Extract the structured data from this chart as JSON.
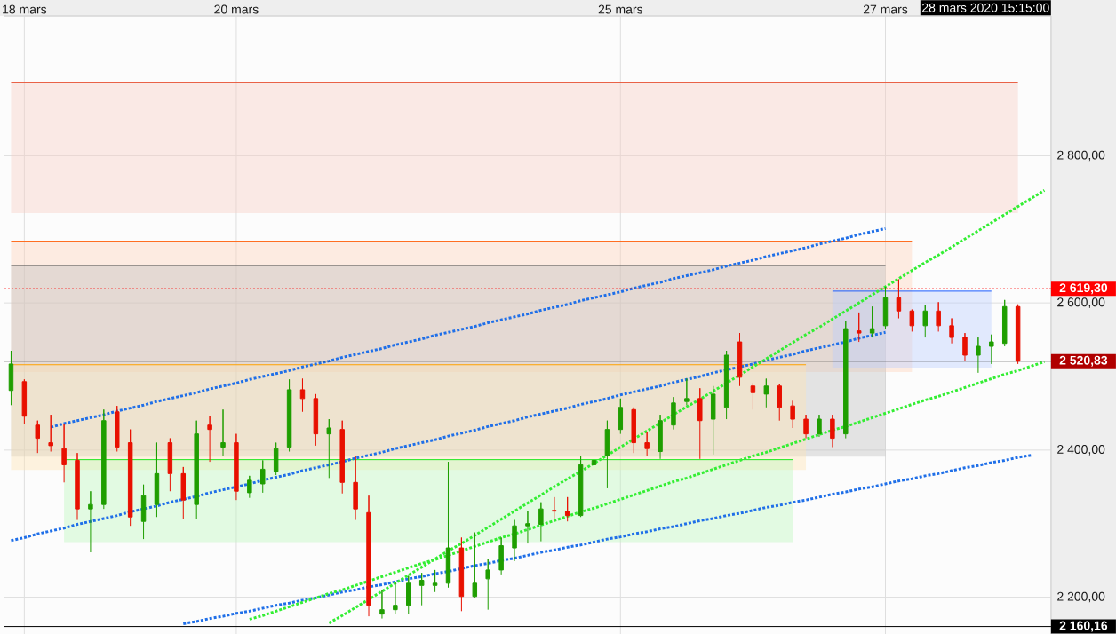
{
  "chart_data": {
    "type": "candlestick",
    "categories": [
      null,
      "18 mars",
      null,
      null,
      null,
      null,
      null,
      null,
      null,
      null,
      null,
      null,
      null,
      null,
      null,
      null,
      null,
      "20 mars",
      null,
      null,
      null,
      null,
      null,
      null,
      null,
      null,
      null,
      null,
      null,
      null,
      null,
      null,
      null,
      null,
      null,
      null,
      null,
      null,
      null,
      null,
      null,
      null,
      null,
      null,
      null,
      null,
      "25 mars",
      null,
      null,
      null,
      null,
      null,
      null,
      null,
      null,
      null,
      null,
      null,
      null,
      null,
      null,
      null,
      null,
      null,
      null,
      null,
      "27 mars",
      null,
      null,
      null,
      null,
      null,
      null,
      null,
      null,
      null,
      null,
      null,
      null
    ],
    "ohlc": [
      [
        2481,
        2535,
        2461,
        2517
      ],
      [
        2493,
        2496,
        2436,
        2446
      ],
      [
        2434,
        2440,
        2396,
        2416
      ],
      [
        2410,
        2448,
        2398,
        2406
      ],
      [
        2402,
        2436,
        2356,
        2380
      ],
      [
        2386,
        2396,
        2305,
        2320
      ],
      [
        2320,
        2344,
        2261,
        2326
      ],
      [
        2326,
        2455,
        2320,
        2440
      ],
      [
        2452,
        2460,
        2398,
        2404
      ],
      [
        2410,
        2428,
        2297,
        2309
      ],
      [
        2303,
        2353,
        2279,
        2338
      ],
      [
        2326,
        2410,
        2309,
        2368
      ],
      [
        2410,
        2416,
        2344,
        2368
      ],
      [
        2368,
        2377,
        2306,
        2332
      ],
      [
        2326,
        2440,
        2306,
        2422
      ],
      [
        2434,
        2446,
        2384,
        2428
      ],
      [
        2404,
        2455,
        2392,
        2410
      ],
      [
        2410,
        2422,
        2332,
        2344
      ],
      [
        2342,
        2365,
        2335,
        2359
      ],
      [
        2354,
        2386,
        2342,
        2374
      ],
      [
        2371,
        2410,
        2366,
        2402
      ],
      [
        2404,
        2496,
        2398,
        2482
      ],
      [
        2482,
        2497,
        2452,
        2470
      ],
      [
        2470,
        2476,
        2406,
        2422
      ],
      [
        2422,
        2442,
        2362,
        2430
      ],
      [
        2428,
        2440,
        2341,
        2356
      ],
      [
        2356,
        2392,
        2305,
        2320
      ],
      [
        2315,
        2338,
        2174,
        2189
      ],
      [
        2177,
        2210,
        2171,
        2183
      ],
      [
        2183,
        2221,
        2177,
        2189
      ],
      [
        2189,
        2229,
        2177,
        2219
      ],
      [
        2216,
        2233,
        2189,
        2223
      ],
      [
        2216,
        2237,
        2207,
        2219
      ],
      [
        2219,
        2384,
        2213,
        2267
      ],
      [
        2267,
        2281,
        2181,
        2201
      ],
      [
        2201,
        2288,
        2199,
        2219
      ],
      [
        2225,
        2252,
        2183,
        2237
      ],
      [
        2237,
        2281,
        2231,
        2270
      ],
      [
        2267,
        2305,
        2249,
        2297
      ],
      [
        2297,
        2317,
        2273,
        2300
      ],
      [
        2299,
        2329,
        2276,
        2320
      ],
      [
        2318,
        2336,
        2306,
        2317
      ],
      [
        2317,
        2336,
        2303,
        2311
      ],
      [
        2311,
        2392,
        2309,
        2380
      ],
      [
        2380,
        2428,
        2368,
        2386
      ],
      [
        2392,
        2440,
        2348,
        2428
      ],
      [
        2428,
        2470,
        2422,
        2458
      ],
      [
        2455,
        2458,
        2396,
        2410
      ],
      [
        2410,
        2424,
        2392,
        2402
      ],
      [
        2398,
        2448,
        2388,
        2440
      ],
      [
        2434,
        2472,
        2428,
        2464
      ],
      [
        2466,
        2497,
        2461,
        2470
      ],
      [
        2470,
        2484,
        2388,
        2440
      ],
      [
        2442,
        2487,
        2394,
        2476
      ],
      [
        2458,
        2535,
        2442,
        2529
      ],
      [
        2547,
        2559,
        2487,
        2499
      ],
      [
        2487,
        2491,
        2455,
        2478
      ],
      [
        2476,
        2497,
        2458,
        2487
      ],
      [
        2487,
        2490,
        2440,
        2458
      ],
      [
        2460,
        2467,
        2430,
        2442
      ],
      [
        2442,
        2448,
        2416,
        2422
      ],
      [
        2422,
        2448,
        2418,
        2442
      ],
      [
        2442,
        2448,
        2404,
        2416
      ],
      [
        2422,
        2575,
        2416,
        2565
      ],
      [
        2562,
        2587,
        2547,
        2559
      ],
      [
        2559,
        2595,
        2553,
        2565
      ],
      [
        2569,
        2622,
        2565,
        2607
      ],
      [
        2607,
        2632,
        2579,
        2589
      ],
      [
        2589,
        2591,
        2561,
        2569
      ],
      [
        2569,
        2597,
        2553,
        2589
      ],
      [
        2589,
        2601,
        2561,
        2569
      ],
      [
        2569,
        2579,
        2545,
        2553
      ],
      [
        2553,
        2559,
        2521,
        2529
      ],
      [
        2529,
        2553,
        2505,
        2541
      ],
      [
        2541,
        2557,
        2517,
        2547
      ],
      [
        2545,
        2604,
        2541,
        2595
      ],
      [
        2595,
        2598,
        2517,
        2520.83
      ],
      null,
      null
    ],
    "colors": [
      "#1f9e00",
      "#e81000",
      "#e81000",
      "#e81000",
      "#e81000",
      "#e81000",
      "#1f9e00",
      "#1f9e00",
      "#e81000",
      "#e81000",
      "#1f9e00",
      "#1f9e00",
      "#e81000",
      "#e81000",
      "#1f9e00",
      "#e81000",
      "#1f9e00",
      "#e81000",
      "#1f9e00",
      "#1f9e00",
      "#1f9e00",
      "#1f9e00",
      "#e81000",
      "#e81000",
      "#1f9e00",
      "#e81000",
      "#e81000",
      "#e81000",
      "#1f9e00",
      "#1f9e00",
      "#1f9e00",
      "#1f9e00",
      "#1f9e00",
      "#1f9e00",
      "#e81000",
      "#1f9e00",
      "#1f9e00",
      "#1f9e00",
      "#1f9e00",
      "#1f9e00",
      "#1f9e00",
      "#e81000",
      "#e81000",
      "#1f9e00",
      "#1f9e00",
      "#1f9e00",
      "#1f9e00",
      "#e81000",
      "#e81000",
      "#1f9e00",
      "#1f9e00",
      "#1f9e00",
      "#e81000",
      "#1f9e00",
      "#1f9e00",
      "#e81000",
      "#e81000",
      "#1f9e00",
      "#e81000",
      "#e81000",
      "#e81000",
      "#1f9e00",
      "#e81000",
      "#1f9e00",
      "#e81000",
      "#1f9e00",
      "#1f9e00",
      "#e81000",
      "#e81000",
      "#1f9e00",
      "#e81000",
      "#e81000",
      "#e81000",
      "#1f9e00",
      "#1f9e00",
      "#1f9e00",
      "#e81000",
      null,
      null
    ],
    "ylim": [
      2150,
      2990
    ],
    "yticks": [
      {
        "value": 2200,
        "label": "2 200,00"
      },
      {
        "value": 2400,
        "label": "2 400,00"
      },
      {
        "value": 2600,
        "label": "2 600,00"
      },
      {
        "value": 2800,
        "label": "2 800,00"
      }
    ],
    "grid": true,
    "series": [
      {
        "type": "line",
        "color": "#e8583c",
        "line_style": "solid",
        "values": [
          2900,
          2900,
          2900,
          2900,
          2900,
          2900,
          2900,
          2900,
          2900,
          2900,
          2900,
          2900,
          2900,
          2900,
          2900,
          2900,
          2900,
          2900,
          2900,
          2900,
          2900,
          2900,
          2900,
          2900,
          2900,
          2900,
          2900,
          2900,
          2900,
          2900,
          2900,
          2900,
          2900,
          2900,
          2900,
          2900,
          2900,
          2900,
          2900,
          2900,
          2900,
          2900,
          2900,
          2900,
          2900,
          2900,
          2900,
          2900,
          2900,
          2900,
          2900,
          2900,
          2900,
          2900,
          2900,
          2900,
          2900,
          2900,
          2900,
          2900,
          2900,
          2900,
          2900,
          2900,
          2900,
          2900,
          2900,
          2900,
          2900,
          2900,
          2900,
          2900,
          2900,
          2900,
          2900,
          2900,
          2900,
          null,
          null
        ],
        "upper": [
          2900,
          2900,
          2900,
          2900,
          2900,
          2900,
          2900,
          2900,
          2900,
          2900,
          2900,
          2900,
          2900,
          2900,
          2900,
          2900,
          2900,
          2900,
          2900,
          2900,
          2900,
          2900,
          2900,
          2900,
          2900,
          2900,
          2900,
          2900,
          2900,
          2900,
          2900,
          2900,
          2900,
          2900,
          2900,
          2900,
          2900,
          2900,
          2900,
          2900,
          2900,
          2900,
          2900,
          2900,
          2900,
          2900,
          2900,
          2900,
          2900,
          2900,
          2900,
          2900,
          2900,
          2900,
          2900,
          2900,
          2900,
          2900,
          2900,
          2900,
          2900,
          2900,
          2900,
          2900,
          2900,
          2900,
          2900,
          2900,
          2900,
          2900,
          2900,
          2900,
          2900,
          2900,
          2900,
          2900,
          2900,
          null,
          null
        ],
        "lower": [
          2722,
          2722,
          2722,
          2722,
          2722,
          2722,
          2722,
          2722,
          2722,
          2722,
          2722,
          2722,
          2722,
          2722,
          2722,
          2722,
          2722,
          2722,
          2722,
          2722,
          2722,
          2722,
          2722,
          2722,
          2722,
          2722,
          2722,
          2722,
          2722,
          2722,
          2722,
          2722,
          2722,
          2722,
          2722,
          2722,
          2722,
          2722,
          2722,
          2722,
          2722,
          2722,
          2722,
          2722,
          2722,
          2722,
          2722,
          2722,
          2722,
          2722,
          2722,
          2722,
          2722,
          2722,
          2722,
          2722,
          2722,
          2722,
          2722,
          2722,
          2722,
          2722,
          2722,
          2722,
          2722,
          2722,
          2722,
          2722,
          2722,
          2722,
          2722,
          2722,
          2722,
          2722,
          2722,
          2722,
          2722,
          null,
          null
        ]
      },
      {
        "type": "line",
        "color": "#ff6a1a",
        "line_style": "solid",
        "values": [
          2684,
          2684,
          2684,
          2684,
          2684,
          2684,
          2684,
          2684,
          2684,
          2684,
          2684,
          2684,
          2684,
          2684,
          2684,
          2684,
          2684,
          2684,
          2684,
          2684,
          2684,
          2684,
          2684,
          2684,
          2684,
          2684,
          2684,
          2684,
          2684,
          2684,
          2684,
          2684,
          2684,
          2684,
          2684,
          2684,
          2684,
          2684,
          2684,
          2684,
          2684,
          2684,
          2684,
          2684,
          2684,
          2684,
          2684,
          2684,
          2684,
          2684,
          2684,
          2684,
          2684,
          2684,
          2684,
          2684,
          2684,
          2684,
          2684,
          2684,
          2684,
          2684,
          2684,
          2684,
          2684,
          2684,
          2684,
          2684,
          2684,
          null,
          null,
          null,
          null,
          null,
          null,
          null,
          null,
          null,
          null
        ],
        "upper": [
          2684,
          2684,
          2684,
          2684,
          2684,
          2684,
          2684,
          2684,
          2684,
          2684,
          2684,
          2684,
          2684,
          2684,
          2684,
          2684,
          2684,
          2684,
          2684,
          2684,
          2684,
          2684,
          2684,
          2684,
          2684,
          2684,
          2684,
          2684,
          2684,
          2684,
          2684,
          2684,
          2684,
          2684,
          2684,
          2684,
          2684,
          2684,
          2684,
          2684,
          2684,
          2684,
          2684,
          2684,
          2684,
          2684,
          2684,
          2684,
          2684,
          2684,
          2684,
          2684,
          2684,
          2684,
          2684,
          2684,
          2684,
          2684,
          2684,
          2684,
          2684,
          2684,
          2684,
          2684,
          2684,
          2684,
          2684,
          2684,
          2684,
          null,
          null,
          null,
          null,
          null,
          null,
          null,
          null,
          null,
          null
        ],
        "lower": [
          2506,
          2506,
          2506,
          2506,
          2506,
          2506,
          2506,
          2506,
          2506,
          2506,
          2506,
          2506,
          2506,
          2506,
          2506,
          2506,
          2506,
          2506,
          2506,
          2506,
          2506,
          2506,
          2506,
          2506,
          2506,
          2506,
          2506,
          2506,
          2506,
          2506,
          2506,
          2506,
          2506,
          2506,
          2506,
          2506,
          2506,
          2506,
          2506,
          2506,
          2506,
          2506,
          2506,
          2506,
          2506,
          2506,
          2506,
          2506,
          2506,
          2506,
          2506,
          2506,
          2506,
          2506,
          2506,
          2506,
          2506,
          2506,
          2506,
          2506,
          2506,
          2506,
          2506,
          2506,
          2506,
          2506,
          2506,
          2506,
          2506,
          null,
          null,
          null,
          null,
          null,
          null,
          null,
          null,
          null,
          null
        ]
      },
      {
        "type": "line",
        "color": "#222222",
        "line_style": "solid",
        "values": [
          2651,
          2651,
          2651,
          2651,
          2651,
          2651,
          2651,
          2651,
          2651,
          2651,
          2651,
          2651,
          2651,
          2651,
          2651,
          2651,
          2651,
          2651,
          2651,
          2651,
          2651,
          2651,
          2651,
          2651,
          2651,
          2651,
          2651,
          2651,
          2651,
          2651,
          2651,
          2651,
          2651,
          2651,
          2651,
          2651,
          2651,
          2651,
          2651,
          2651,
          2651,
          2651,
          2651,
          2651,
          2651,
          2651,
          2651,
          2651,
          2651,
          2651,
          2651,
          2651,
          2651,
          2651,
          2651,
          2651,
          2651,
          2651,
          2651,
          2651,
          2651,
          2651,
          2651,
          2651,
          2651,
          2651,
          2651,
          null,
          null,
          null,
          null,
          null,
          null,
          null,
          null,
          null,
          null,
          null,
          null
        ],
        "upper": [
          2651,
          2651,
          2651,
          2651,
          2651,
          2651,
          2651,
          2651,
          2651,
          2651,
          2651,
          2651,
          2651,
          2651,
          2651,
          2651,
          2651,
          2651,
          2651,
          2651,
          2651,
          2651,
          2651,
          2651,
          2651,
          2651,
          2651,
          2651,
          2651,
          2651,
          2651,
          2651,
          2651,
          2651,
          2651,
          2651,
          2651,
          2651,
          2651,
          2651,
          2651,
          2651,
          2651,
          2651,
          2651,
          2651,
          2651,
          2651,
          2651,
          2651,
          2651,
          2651,
          2651,
          2651,
          2651,
          2651,
          2651,
          2651,
          2651,
          2651,
          2651,
          2651,
          2651,
          2651,
          2651,
          2651,
          2651,
          null,
          null,
          null,
          null,
          null,
          null,
          null,
          null,
          null,
          null,
          null,
          null
        ],
        "lower": [
          2391,
          2391,
          2391,
          2391,
          2391,
          2391,
          2391,
          2391,
          2391,
          2391,
          2391,
          2391,
          2391,
          2391,
          2391,
          2391,
          2391,
          2391,
          2391,
          2391,
          2391,
          2391,
          2391,
          2391,
          2391,
          2391,
          2391,
          2391,
          2391,
          2391,
          2391,
          2391,
          2391,
          2391,
          2391,
          2391,
          2391,
          2391,
          2391,
          2391,
          2391,
          2391,
          2391,
          2391,
          2391,
          2391,
          2391,
          2391,
          2391,
          2391,
          2391,
          2391,
          2391,
          2391,
          2391,
          2391,
          2391,
          2391,
          2391,
          2391,
          2391,
          2391,
          2391,
          2391,
          2391,
          2391,
          2391,
          null,
          null,
          null,
          null,
          null,
          null,
          null,
          null,
          null,
          null,
          null,
          null
        ]
      },
      {
        "type": "line",
        "color": "#ffa200",
        "line_style": "solid",
        "values": [
          2516,
          2516,
          2516,
          2516,
          2516,
          2516,
          2516,
          2516,
          2516,
          2516,
          2516,
          2516,
          2516,
          2516,
          2516,
          2516,
          2516,
          2516,
          2516,
          2516,
          2516,
          2516,
          2516,
          2516,
          2516,
          2516,
          2516,
          2516,
          2516,
          2516,
          2516,
          2516,
          2516,
          2516,
          2516,
          2516,
          2516,
          2516,
          2516,
          2516,
          2516,
          2516,
          2516,
          2516,
          2516,
          2516,
          2516,
          2516,
          2516,
          2516,
          2516,
          2516,
          2516,
          2516,
          2516,
          2516,
          2516,
          2516,
          2516,
          2516,
          2516,
          null,
          null,
          null,
          null,
          null,
          null,
          null,
          null,
          null,
          null,
          null,
          null,
          null,
          null,
          null,
          null,
          null,
          null
        ],
        "upper": [
          2516,
          2516,
          2516,
          2516,
          2516,
          2516,
          2516,
          2516,
          2516,
          2516,
          2516,
          2516,
          2516,
          2516,
          2516,
          2516,
          2516,
          2516,
          2516,
          2516,
          2516,
          2516,
          2516,
          2516,
          2516,
          2516,
          2516,
          2516,
          2516,
          2516,
          2516,
          2516,
          2516,
          2516,
          2516,
          2516,
          2516,
          2516,
          2516,
          2516,
          2516,
          2516,
          2516,
          2516,
          2516,
          2516,
          2516,
          2516,
          2516,
          2516,
          2516,
          2516,
          2516,
          2516,
          2516,
          2516,
          2516,
          2516,
          2516,
          2516,
          2516,
          null,
          null,
          null,
          null,
          null,
          null,
          null,
          null,
          null,
          null,
          null,
          null,
          null,
          null,
          null,
          null,
          null,
          null
        ],
        "lower": [
          2373,
          2373,
          2373,
          2373,
          2373,
          2373,
          2373,
          2373,
          2373,
          2373,
          2373,
          2373,
          2373,
          2373,
          2373,
          2373,
          2373,
          2373,
          2373,
          2373,
          2373,
          2373,
          2373,
          2373,
          2373,
          2373,
          2373,
          2373,
          2373,
          2373,
          2373,
          2373,
          2373,
          2373,
          2373,
          2373,
          2373,
          2373,
          2373,
          2373,
          2373,
          2373,
          2373,
          2373,
          2373,
          2373,
          2373,
          2373,
          2373,
          2373,
          2373,
          2373,
          2373,
          2373,
          2373,
          2373,
          2373,
          2373,
          2373,
          2373,
          2373,
          null,
          null,
          null,
          null,
          null,
          null,
          null,
          null,
          null,
          null,
          null,
          null,
          null,
          null,
          null,
          null,
          null,
          null
        ]
      },
      {
        "type": "line",
        "color": "#1ee61e",
        "line_style": "solid",
        "values": [
          null,
          null,
          null,
          null,
          2387,
          2387,
          2387,
          2387,
          2387,
          2387,
          2387,
          2387,
          2387,
          2387,
          2387,
          2387,
          2387,
          2387,
          2387,
          2387,
          2387,
          2387,
          2387,
          2387,
          2387,
          2387,
          2387,
          2387,
          2387,
          2387,
          2387,
          2387,
          2387,
          2387,
          2387,
          2387,
          2387,
          2387,
          2387,
          2387,
          2387,
          2387,
          2387,
          2387,
          2387,
          2387,
          2387,
          2387,
          2387,
          2387,
          2387,
          2387,
          2387,
          2387,
          2387,
          2387,
          2387,
          2387,
          2387,
          2387,
          null,
          null,
          null,
          null,
          null,
          null,
          null,
          null,
          null,
          null,
          null,
          null,
          null,
          null,
          null,
          null,
          null,
          null,
          null
        ],
        "upper": [
          null,
          null,
          null,
          null,
          2387,
          2387,
          2387,
          2387,
          2387,
          2387,
          2387,
          2387,
          2387,
          2387,
          2387,
          2387,
          2387,
          2387,
          2387,
          2387,
          2387,
          2387,
          2387,
          2387,
          2387,
          2387,
          2387,
          2387,
          2387,
          2387,
          2387,
          2387,
          2387,
          2387,
          2387,
          2387,
          2387,
          2387,
          2387,
          2387,
          2387,
          2387,
          2387,
          2387,
          2387,
          2387,
          2387,
          2387,
          2387,
          2387,
          2387,
          2387,
          2387,
          2387,
          2387,
          2387,
          2387,
          2387,
          2387,
          2387,
          null,
          null,
          null,
          null,
          null,
          null,
          null,
          null,
          null,
          null,
          null,
          null,
          null,
          null,
          null,
          null,
          null,
          null,
          null
        ],
        "lower": [
          null,
          null,
          null,
          null,
          2275,
          2275,
          2275,
          2275,
          2275,
          2275,
          2275,
          2275,
          2275,
          2275,
          2275,
          2275,
          2275,
          2275,
          2275,
          2275,
          2275,
          2275,
          2275,
          2275,
          2275,
          2275,
          2275,
          2275,
          2275,
          2275,
          2275,
          2275,
          2275,
          2275,
          2275,
          2275,
          2275,
          2275,
          2275,
          2275,
          2275,
          2275,
          2275,
          2275,
          2275,
          2275,
          2275,
          2275,
          2275,
          2275,
          2275,
          2275,
          2275,
          2275,
          2275,
          2275,
          2275,
          2275,
          2275,
          2275,
          null,
          null,
          null,
          null,
          null,
          null,
          null,
          null,
          null,
          null,
          null,
          null,
          null,
          null,
          null,
          null,
          null,
          null,
          null
        ]
      },
      {
        "type": "line",
        "color": "#1a5cff",
        "line_style": "solid",
        "values": [
          null,
          null,
          null,
          null,
          null,
          null,
          null,
          null,
          null,
          null,
          null,
          null,
          null,
          null,
          null,
          null,
          null,
          null,
          null,
          null,
          null,
          null,
          null,
          null,
          null,
          null,
          null,
          null,
          null,
          null,
          null,
          null,
          null,
          null,
          null,
          null,
          null,
          null,
          null,
          null,
          null,
          null,
          null,
          null,
          null,
          null,
          null,
          null,
          null,
          null,
          null,
          null,
          null,
          null,
          null,
          null,
          null,
          null,
          null,
          null,
          null,
          null,
          2616,
          2616,
          2616,
          2616,
          2616,
          2616,
          2616,
          2616,
          2616,
          2616,
          2616,
          2616,
          2616,
          null,
          null,
          null,
          null
        ],
        "upper": [
          null,
          null,
          null,
          null,
          null,
          null,
          null,
          null,
          null,
          null,
          null,
          null,
          null,
          null,
          null,
          null,
          null,
          null,
          null,
          null,
          null,
          null,
          null,
          null,
          null,
          null,
          null,
          null,
          null,
          null,
          null,
          null,
          null,
          null,
          null,
          null,
          null,
          null,
          null,
          null,
          null,
          null,
          null,
          null,
          null,
          null,
          null,
          null,
          null,
          null,
          null,
          null,
          null,
          null,
          null,
          null,
          null,
          null,
          null,
          null,
          null,
          null,
          2616,
          2616,
          2616,
          2616,
          2616,
          2616,
          2616,
          2616,
          2616,
          2616,
          2616,
          2616,
          2616,
          null,
          null,
          null,
          null
        ],
        "lower": [
          null,
          null,
          null,
          null,
          null,
          null,
          null,
          null,
          null,
          null,
          null,
          null,
          null,
          null,
          null,
          null,
          null,
          null,
          null,
          null,
          null,
          null,
          null,
          null,
          null,
          null,
          null,
          null,
          null,
          null,
          null,
          null,
          null,
          null,
          null,
          null,
          null,
          null,
          null,
          null,
          null,
          null,
          null,
          null,
          null,
          null,
          null,
          null,
          null,
          null,
          null,
          null,
          null,
          null,
          null,
          null,
          null,
          null,
          null,
          null,
          null,
          null,
          2512,
          2512,
          2512,
          2512,
          2512,
          2512,
          2512,
          2512,
          2512,
          2512,
          2512,
          2512,
          2512,
          null,
          null,
          null,
          null
        ]
      },
      {
        "type": "line",
        "color": "#1f6fe8",
        "line_style": "dotted",
        "values": [
          null,
          null,
          null,
          2431,
          2436,
          2440,
          2444,
          2448,
          2453,
          2457,
          2461,
          2466,
          2470,
          2474,
          2478,
          2483,
          2487,
          2491,
          2496,
          2500,
          2504,
          2508,
          2513,
          2517,
          2521,
          2526,
          2530,
          2534,
          2538,
          2543,
          2547,
          2551,
          2556,
          2560,
          2564,
          2568,
          2573,
          2577,
          2581,
          2585,
          2590,
          2594,
          2598,
          2603,
          2607,
          2611,
          2615,
          2620,
          2624,
          2628,
          2633,
          2637,
          2641,
          2645,
          2650,
          2654,
          2658,
          2663,
          2667,
          2671,
          2675,
          2680,
          2684,
          2688,
          2693,
          2697,
          2701,
          null,
          null,
          null,
          null,
          null,
          null,
          null,
          null,
          null,
          null,
          null,
          null
        ]
      },
      {
        "type": "line",
        "color": "#1f6fe8",
        "line_style": "dotted",
        "values": [
          2277,
          2281,
          2286,
          2290,
          2294,
          2299,
          2303,
          2307,
          2311,
          2316,
          2320,
          2324,
          2329,
          2333,
          2337,
          2342,
          2346,
          2350,
          2354,
          2359,
          2363,
          2367,
          2372,
          2376,
          2380,
          2384,
          2389,
          2393,
          2397,
          2402,
          2406,
          2410,
          2414,
          2419,
          2423,
          2427,
          2432,
          2436,
          2440,
          2445,
          2449,
          2453,
          2457,
          2462,
          2466,
          2470,
          2475,
          2479,
          2483,
          2487,
          2492,
          2496,
          2500,
          2505,
          2509,
          2513,
          2517,
          2522,
          2526,
          2530,
          2535,
          2539,
          2543,
          2547,
          2552,
          2556,
          2560,
          null,
          null,
          null,
          null,
          null,
          null,
          null,
          null,
          null,
          null,
          null,
          null
        ]
      },
      {
        "type": "line",
        "color": "#1f6fe8",
        "line_style": "dotted",
        "values": [
          null,
          null,
          null,
          null,
          null,
          null,
          null,
          null,
          null,
          null,
          null,
          null,
          null,
          2164,
          2167,
          2171,
          2174,
          2178,
          2181,
          2185,
          2189,
          2192,
          2196,
          2199,
          2203,
          2207,
          2210,
          2214,
          2217,
          2221,
          2225,
          2228,
          2232,
          2235,
          2239,
          2243,
          2246,
          2250,
          2253,
          2257,
          2261,
          2264,
          2268,
          2271,
          2275,
          2279,
          2282,
          2286,
          2289,
          2293,
          2296,
          2300,
          2304,
          2307,
          2311,
          2314,
          2318,
          2322,
          2325,
          2329,
          2332,
          2336,
          2340,
          2343,
          2347,
          2350,
          2354,
          2358,
          2361,
          2365,
          2368,
          2372,
          2376,
          2379,
          2383,
          2386,
          2390,
          2393,
          null
        ]
      },
      {
        "type": "line",
        "color": "#33ee33",
        "line_style": "dotted",
        "values": [
          null,
          null,
          null,
          null,
          null,
          null,
          null,
          null,
          null,
          null,
          null,
          null,
          null,
          null,
          null,
          null,
          null,
          null,
          null,
          null,
          null,
          null,
          null,
          null,
          2165,
          2175,
          2186,
          2197,
          2208,
          2219,
          2230,
          2241,
          2252,
          2263,
          2273,
          2284,
          2295,
          2306,
          2317,
          2328,
          2339,
          2350,
          2361,
          2371,
          2382,
          2393,
          2404,
          2415,
          2426,
          2437,
          2448,
          2459,
          2469,
          2480,
          2491,
          2502,
          2513,
          2524,
          2535,
          2546,
          2557,
          2567,
          2578,
          2589,
          2600,
          2611,
          2622,
          2633,
          2644,
          2655,
          2665,
          2676,
          2687,
          2698,
          2709,
          2720,
          2731,
          2742,
          2753
        ]
      },
      {
        "type": "line",
        "color": "#33ee33",
        "line_style": "dotted",
        "values": [
          null,
          null,
          null,
          null,
          null,
          null,
          null,
          null,
          null,
          null,
          null,
          null,
          null,
          null,
          null,
          null,
          null,
          null,
          2170,
          2175,
          2181,
          2187,
          2193,
          2199,
          2205,
          2210,
          2216,
          2222,
          2228,
          2234,
          2240,
          2246,
          2251,
          2257,
          2263,
          2269,
          2275,
          2281,
          2286,
          2292,
          2298,
          2304,
          2310,
          2316,
          2321,
          2327,
          2333,
          2339,
          2345,
          2351,
          2357,
          2362,
          2368,
          2374,
          2380,
          2386,
          2392,
          2397,
          2403,
          2409,
          2415,
          2421,
          2427,
          2432,
          2438,
          2444,
          2450,
          2456,
          2462,
          2468,
          2473,
          2479,
          2485,
          2491,
          2497,
          2503,
          2508,
          2514,
          2520
        ]
      }
    ],
    "ref_lines": [
      {
        "axis": "y",
        "value": 2619.3,
        "label": "2 619,30",
        "color": "#ff0000",
        "line_style": "dotted"
      },
      {
        "axis": "y",
        "value": 2520.83,
        "label": "2 520,83",
        "color": "#333333",
        "line_style": "solid"
      },
      {
        "axis": "y",
        "value": 2160.16,
        "label": "2 160,16",
        "color": "#000000",
        "line_style": "solid"
      }
    ],
    "annotations": [
      "28 mars 2020 15:15:00"
    ]
  }
}
